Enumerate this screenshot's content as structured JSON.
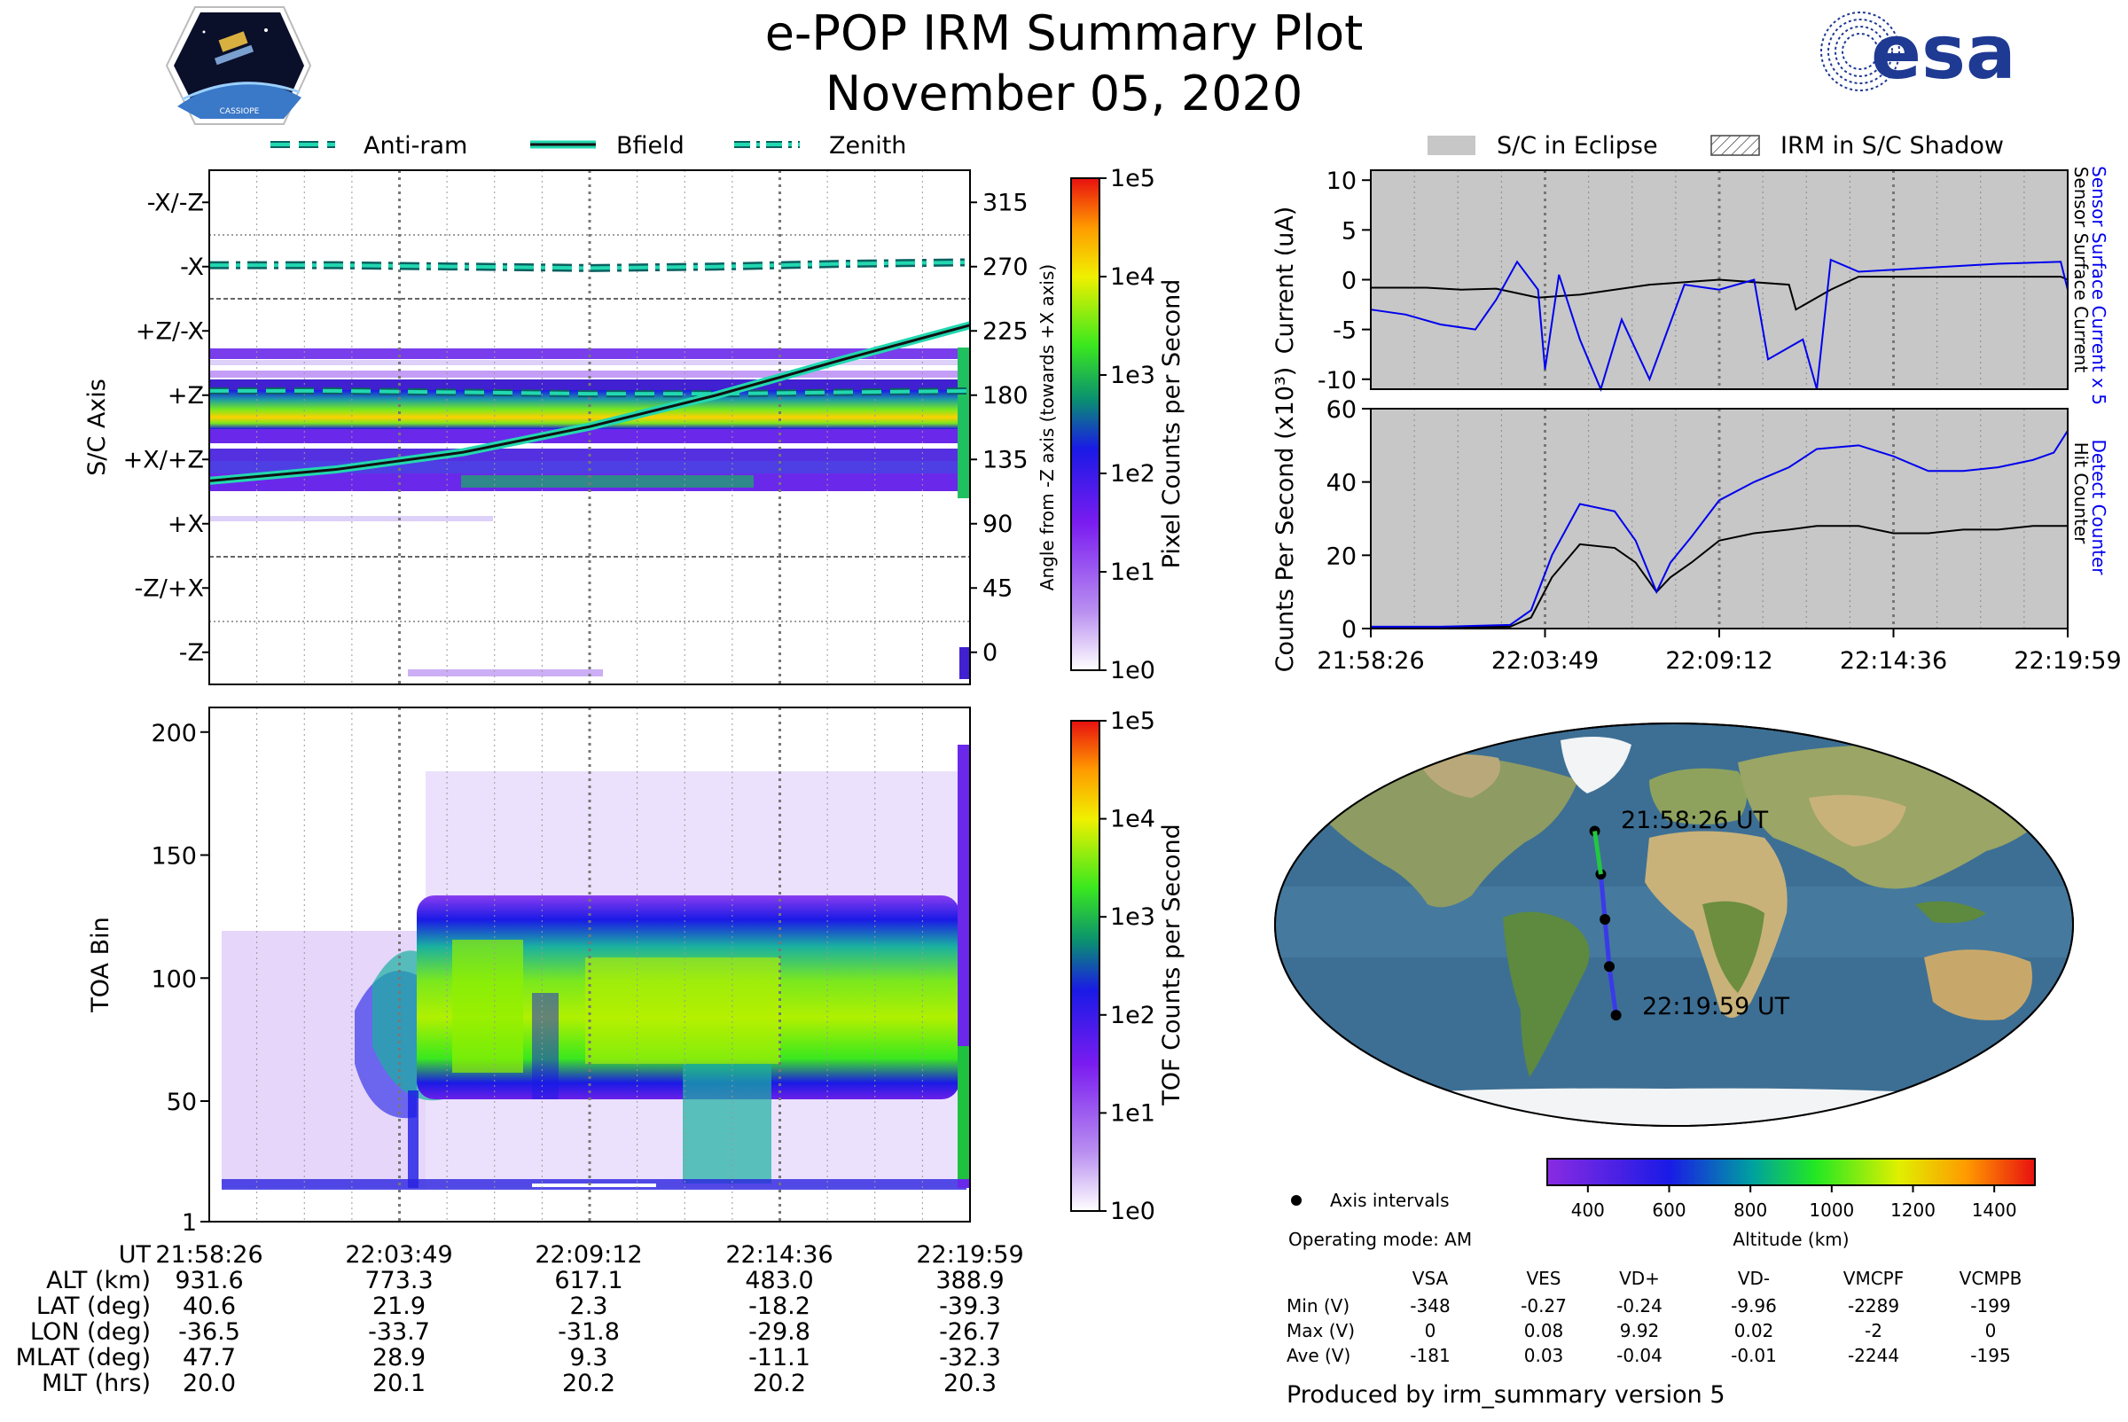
{
  "title": "e-POP IRM Summary Plot",
  "date": "November 05, 2020",
  "logos": {
    "cassiope": "CASSIOPE",
    "esa": "esa"
  },
  "colors": {
    "bfield": "#1a1a1a",
    "cyan": "#22d8b0",
    "eclipse": "#c6c7c6",
    "current_blue": "#0000ee"
  },
  "legend_top": [
    "Anti-ram",
    "Bfield",
    "Zenith"
  ],
  "legend_eclipse": [
    "S/C in Eclipse",
    "IRM in S/C Shadow"
  ],
  "time_ticks": [
    "21:58:26",
    "22:03:49",
    "22:09:12",
    "22:14:36",
    "22:19:59"
  ],
  "chart_data": [
    {
      "type": "heatmap",
      "id": "axis_panel",
      "ylabel": "S/C Axis",
      "ylabel_right": "Angle from -Z axis (towards +X axis)",
      "axis_labels": [
        "-X/-Z",
        "-X",
        "+Z/-X",
        "+Z",
        "+X/+Z",
        "+X",
        "-Z/+X",
        "-Z"
      ],
      "angle_ticks": [
        315,
        270,
        225,
        180,
        135,
        90,
        45,
        0
      ],
      "ylim": [
        -22.5,
        337.5
      ],
      "series": [
        {
          "name": "Zenith",
          "angles": [
            271,
            271,
            270,
            269,
            270,
            272,
            273
          ]
        },
        {
          "name": "Anti-ram",
          "angles": [
            183,
            183,
            182,
            181,
            181,
            182,
            183
          ]
        },
        {
          "name": "Bfield",
          "angles": [
            120,
            128,
            140,
            158,
            180,
            205,
            229
          ]
        }
      ],
      "colorbar": {
        "label": "Pixel Counts per Second",
        "ticks": [
          "1e5",
          "1e4",
          "1e3",
          "1e2",
          "1e1",
          "1e0"
        ]
      }
    },
    {
      "type": "heatmap",
      "id": "toa_panel",
      "ylabel": "TOA Bin",
      "yticks": [
        200,
        150,
        100,
        50,
        1
      ],
      "ylim": [
        1,
        210
      ],
      "colorbar": {
        "label": "TOF Counts per Second",
        "ticks": [
          "1e5",
          "1e4",
          "1e3",
          "1e2",
          "1e1",
          "1e0"
        ]
      }
    },
    {
      "type": "line",
      "id": "current_panel",
      "ylabel": "Current (uA)",
      "yticks": [
        10,
        5,
        0,
        -5,
        -10
      ],
      "ylim": [
        -11,
        11
      ],
      "right_labels": [
        "Sensor Surface Current x 5",
        "Sensor Surface Current"
      ],
      "series": [
        {
          "name": "Sensor Surface Current",
          "color": "#000000",
          "t": [
            0,
            0.08,
            0.13,
            0.18,
            0.2,
            0.24,
            0.3,
            0.4,
            0.5,
            0.6,
            0.61,
            0.66,
            0.7,
            0.8,
            0.9,
            0.99,
            1.0
          ],
          "y": [
            -0.8,
            -0.8,
            -1.0,
            -0.9,
            -1.2,
            -1.8,
            -1.5,
            -0.5,
            0.0,
            -0.5,
            -3.0,
            -1.0,
            0.3,
            0.3,
            0.3,
            0.3,
            0.0
          ]
        },
        {
          "name": "Sensor Surface Current x 5",
          "color": "#0000ee",
          "t": [
            0,
            0.05,
            0.1,
            0.15,
            0.18,
            0.21,
            0.24,
            0.25,
            0.27,
            0.3,
            0.33,
            0.36,
            0.4,
            0.45,
            0.5,
            0.55,
            0.57,
            0.62,
            0.64,
            0.66,
            0.7,
            0.8,
            0.9,
            0.99,
            1.0
          ],
          "y": [
            -3,
            -3.5,
            -4.5,
            -5,
            -2,
            1.8,
            -1,
            -9,
            0.5,
            -6,
            -11,
            -4,
            -10,
            -0.5,
            -1,
            0,
            -8,
            -6,
            -11,
            2,
            0.8,
            1.2,
            1.6,
            1.8,
            -1.0
          ]
        }
      ]
    },
    {
      "type": "line",
      "id": "counts_panel",
      "ylabel": "Counts Per Second (x10³)",
      "yticks": [
        60,
        40,
        20,
        0
      ],
      "ylim": [
        0,
        60
      ],
      "right_labels": [
        "Detect Counter",
        "Hit Counter"
      ],
      "series": [
        {
          "name": "Detect Counter",
          "color": "#0000ee",
          "t": [
            0,
            0.1,
            0.2,
            0.23,
            0.26,
            0.3,
            0.35,
            0.38,
            0.41,
            0.43,
            0.46,
            0.5,
            0.55,
            0.6,
            0.64,
            0.7,
            0.75,
            0.8,
            0.85,
            0.9,
            0.95,
            0.98,
            1.0
          ],
          "y": [
            0.5,
            0.5,
            1,
            5,
            20,
            34,
            32,
            24,
            10,
            18,
            25,
            35,
            40,
            44,
            49,
            50,
            47,
            43,
            43,
            44,
            46,
            48,
            54
          ]
        },
        {
          "name": "Hit Counter",
          "color": "#000000",
          "t": [
            0,
            0.1,
            0.2,
            0.23,
            0.26,
            0.3,
            0.35,
            0.38,
            0.41,
            0.43,
            0.46,
            0.5,
            0.55,
            0.6,
            0.64,
            0.7,
            0.75,
            0.8,
            0.85,
            0.9,
            0.95,
            1.0
          ],
          "y": [
            0.2,
            0.3,
            0.5,
            3,
            14,
            23,
            22,
            18,
            10,
            14,
            18,
            24,
            26,
            27,
            28,
            28,
            26,
            26,
            27,
            27,
            28,
            28
          ]
        }
      ]
    },
    {
      "type": "scatter",
      "id": "ground_track",
      "start_label": "21:58:26 UT",
      "end_label": "22:19:59 UT",
      "track": [
        {
          "lat": 40.6,
          "lon": -36.5
        },
        {
          "lat": 21.9,
          "lon": -33.7
        },
        {
          "lat": 2.3,
          "lon": -31.8
        },
        {
          "lat": -18.2,
          "lon": -29.8
        },
        {
          "lat": -39.3,
          "lon": -26.7
        }
      ],
      "colorbar": {
        "label": "Altitude (km)",
        "ticks": [
          400,
          600,
          800,
          1000,
          1200,
          1400
        ],
        "range": [
          300,
          1500
        ]
      }
    }
  ],
  "bottom_table": {
    "rows": [
      {
        "label": "UT",
        "values": [
          "21:58:26",
          "22:03:49",
          "22:09:12",
          "22:14:36",
          "22:19:59"
        ]
      },
      {
        "label": "ALT (km)",
        "values": [
          "931.6",
          "773.3",
          "617.1",
          "483.0",
          "388.9"
        ]
      },
      {
        "label": "LAT (deg)",
        "values": [
          "40.6",
          "21.9",
          "2.3",
          "-18.2",
          "-39.3"
        ]
      },
      {
        "label": "LON (deg)",
        "values": [
          "-36.5",
          "-33.7",
          "-31.8",
          "-29.8",
          "-26.7"
        ]
      },
      {
        "label": "MLAT (deg)",
        "values": [
          "47.7",
          "28.9",
          "9.3",
          "-11.1",
          "-32.3"
        ]
      },
      {
        "label": "MLT (hrs)",
        "values": [
          "20.0",
          "20.1",
          "20.2",
          "20.2",
          "20.3"
        ]
      }
    ]
  },
  "info": {
    "axis_intervals": "Axis intervals",
    "operating_mode": "Operating mode: AM",
    "columns": [
      "VSA",
      "VES",
      "VD+",
      "VD-",
      "VMCPF",
      "VCMPB"
    ],
    "rows": [
      {
        "label": "Min (V)",
        "values": [
          "-348",
          "-0.27",
          "-0.24",
          "-9.96",
          "-2289",
          "-199"
        ]
      },
      {
        "label": "Max (V)",
        "values": [
          "0",
          "0.08",
          "9.92",
          "0.02",
          "-2",
          "0"
        ]
      },
      {
        "label": "Ave (V)",
        "values": [
          "-181",
          "0.03",
          "-0.04",
          "-0.01",
          "-2244",
          "-195"
        ]
      }
    ],
    "produced_by": "Produced by irm_summary version 5"
  }
}
